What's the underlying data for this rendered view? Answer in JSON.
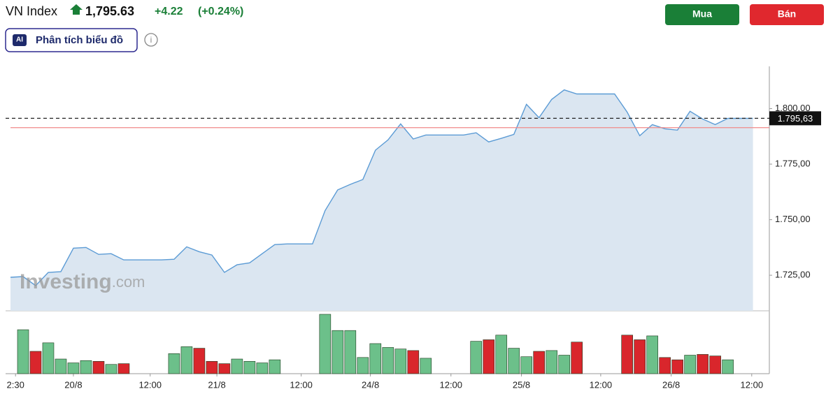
{
  "header": {
    "symbol": "VN Index",
    "price": "1,795.63",
    "change": "+4.22",
    "change_pct": "(+0.24%)",
    "buy": "Mua",
    "sell": "Bán",
    "ai_button": "Phân tích biểu đồ",
    "ai_icon": "AI"
  },
  "watermark": {
    "brand": "Investing",
    "domain": ".com"
  },
  "chart_data": [
    {
      "type": "line",
      "x": [
        0,
        1,
        2,
        3,
        4,
        5,
        6,
        7,
        8,
        9,
        10,
        11,
        12,
        13,
        14,
        15,
        16,
        17,
        18,
        19,
        20,
        21,
        22,
        23,
        24,
        25,
        26,
        27,
        28,
        29,
        30,
        31,
        32,
        33,
        34,
        35,
        36,
        37,
        38,
        39,
        40,
        41,
        42,
        43,
        44,
        45,
        46,
        47,
        48,
        49,
        50,
        51,
        52,
        53,
        54,
        55,
        56,
        57,
        58,
        59
      ],
      "series": [
        {
          "color": "#5b9bd5",
          "values": [
            1724.1,
            1724.4,
            1720.3,
            1726.3,
            1726.6,
            1737.2,
            1737.5,
            1734.4,
            1734.7,
            1731.9,
            1731.9,
            1731.9,
            1731.9,
            1732.2,
            1737.8,
            1735.6,
            1734.1,
            1726.3,
            1729.7,
            1730.6,
            1734.7,
            1738.8,
            1739.1,
            1739.1,
            1739.1,
            1754.1,
            1763.4,
            1765.9,
            1768.1,
            1781.3,
            1785.9,
            1793.1,
            1786.3,
            1788.1,
            1788.1,
            1788.1,
            1788.1,
            1789.1,
            1785.0,
            1786.6,
            1788.4,
            1801.9,
            1795.9,
            1804.1,
            1808.4,
            1806.6,
            1806.6,
            1806.6,
            1806.6,
            1798.4,
            1787.8,
            1792.8,
            1790.9,
            1790.3,
            1798.8,
            1795.3,
            1792.8,
            1795.6,
            1795.6,
            1795.63
          ]
        }
      ],
      "xlim": [
        0,
        60.3
      ],
      "xticks": [
        {
          "value": 0.4,
          "label": "2:30"
        },
        {
          "value": 5,
          "label": "20/8"
        },
        {
          "value": 11.1,
          "label": "12:00"
        },
        {
          "value": 16.4,
          "label": "21/8"
        },
        {
          "value": 23.1,
          "label": "12:00"
        },
        {
          "value": 28.6,
          "label": "24/8"
        },
        {
          "value": 35,
          "label": "12:00"
        },
        {
          "value": 40.6,
          "label": "25/8"
        },
        {
          "value": 46.9,
          "label": "12:00"
        },
        {
          "value": 52.5,
          "label": "26/8"
        },
        {
          "value": 58.9,
          "label": "12:00"
        }
      ],
      "ylim": [
        1709,
        1819
      ],
      "yticks": [
        {
          "value": 1725,
          "label": "1.725,00"
        },
        {
          "value": 1750,
          "label": "1.750,00"
        },
        {
          "value": 1775,
          "label": "1.775,00"
        },
        {
          "value": 1800,
          "label": "1.800,00"
        }
      ],
      "price_line": {
        "value": 1795.63,
        "label": "1.795,63"
      },
      "reference_line": 1791.41,
      "area_color": "#dbe6f1"
    },
    {
      "type": "bar",
      "x": [
        1,
        2,
        3,
        4,
        5,
        6,
        7,
        8,
        9,
        13,
        14,
        15,
        16,
        17,
        18,
        19,
        20,
        21,
        25,
        26,
        27,
        28,
        29,
        30,
        31,
        32,
        33,
        37,
        38,
        39,
        40,
        41,
        42,
        43,
        44,
        45,
        49,
        50,
        51,
        52,
        53,
        54,
        55,
        56,
        57
      ],
      "values": [
        57,
        29,
        40,
        19,
        14,
        17,
        16,
        12,
        13,
        26,
        35,
        33,
        16,
        13,
        19,
        16,
        14,
        18,
        77,
        56,
        56,
        21,
        39,
        34,
        32,
        30,
        20,
        42,
        44,
        50,
        33,
        22,
        29,
        30,
        24,
        41,
        50,
        44,
        49,
        21,
        18,
        24,
        25,
        23,
        18
      ],
      "colors": [
        "#6cc08a",
        "#d9262c",
        "#6cc08a",
        "#6cc08a",
        "#6cc08a",
        "#6cc08a",
        "#d9262c",
        "#6cc08a",
        "#d9262c",
        "#6cc08a",
        "#6cc08a",
        "#d9262c",
        "#d9262c",
        "#d9262c",
        "#6cc08a",
        "#6cc08a",
        "#6cc08a",
        "#6cc08a",
        "#6cc08a",
        "#6cc08a",
        "#6cc08a",
        "#6cc08a",
        "#6cc08a",
        "#6cc08a",
        "#6cc08a",
        "#d9262c",
        "#6cc08a",
        "#6cc08a",
        "#d9262c",
        "#6cc08a",
        "#6cc08a",
        "#6cc08a",
        "#d9262c",
        "#6cc08a",
        "#6cc08a",
        "#d9262c",
        "#d9262c",
        "#d9262c",
        "#6cc08a",
        "#d9262c",
        "#d9262c",
        "#6cc08a",
        "#d9262c",
        "#d9262c",
        "#6cc08a"
      ],
      "xlim": [
        0,
        60.3
      ]
    }
  ]
}
